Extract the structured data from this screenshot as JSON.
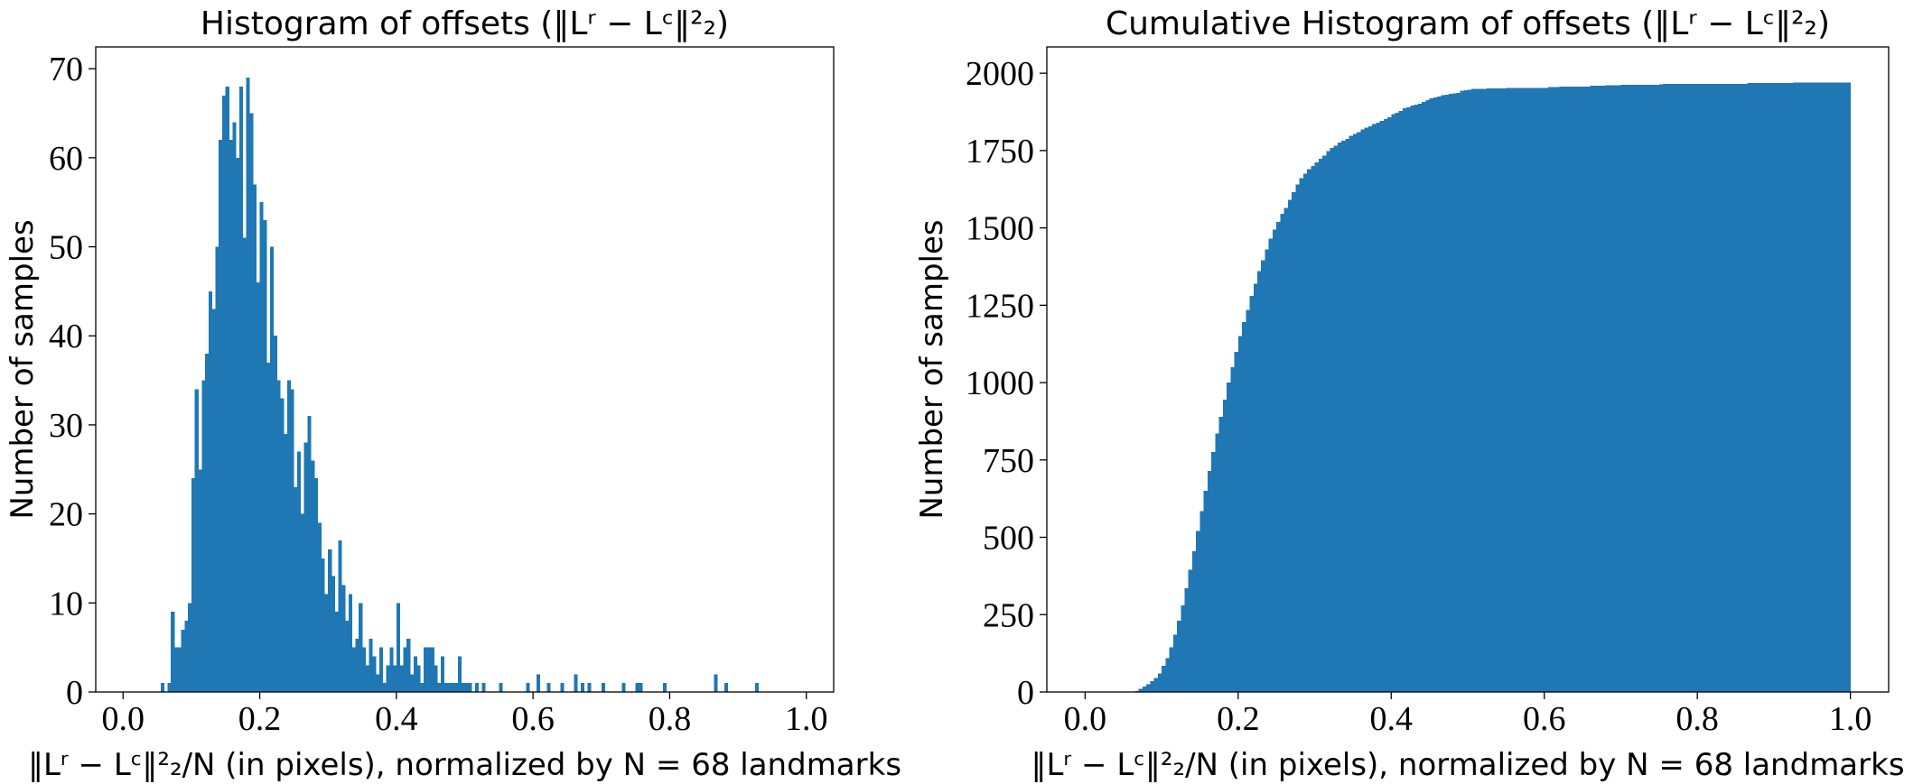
{
  "chart_data": [
    {
      "type": "histogram",
      "title": "Histogram of offsets (‖Lʳ − Lᶜ‖²₂)",
      "x_label": "‖Lʳ − Lᶜ‖²₂/N (in pixels), normalized by N = 68 landmarks",
      "y_label": "Number of samples",
      "color": "#1f77b4",
      "bins": [
        0,
        0.005,
        0.01,
        0.015,
        0.02,
        0.025,
        0.03,
        0.035,
        0.04,
        0.045,
        0.05,
        0.055,
        0.06,
        0.065,
        0.07,
        0.075,
        0.08,
        0.085,
        0.09,
        0.095,
        0.1,
        0.105,
        0.11,
        0.115,
        0.12,
        0.125,
        0.13,
        0.135,
        0.14,
        0.145,
        0.15,
        0.155,
        0.16,
        0.165,
        0.17,
        0.175,
        0.18,
        0.185,
        0.19,
        0.195,
        0.2,
        0.205,
        0.21,
        0.215,
        0.22,
        0.225,
        0.23,
        0.235,
        0.24,
        0.245,
        0.25,
        0.255,
        0.26,
        0.265,
        0.27,
        0.275,
        0.28,
        0.285,
        0.29,
        0.295,
        0.3,
        0.305,
        0.31,
        0.315,
        0.32,
        0.325,
        0.33,
        0.335,
        0.34,
        0.345,
        0.35,
        0.355,
        0.36,
        0.365,
        0.37,
        0.375,
        0.38,
        0.385,
        0.39,
        0.395,
        0.4,
        0.405,
        0.41,
        0.415,
        0.42,
        0.425,
        0.43,
        0.435,
        0.44,
        0.445,
        0.45,
        0.455,
        0.46,
        0.465,
        0.47,
        0.475,
        0.48,
        0.485,
        0.49,
        0.495,
        0.5,
        0.505,
        0.51,
        0.515,
        0.52,
        0.525,
        0.53,
        0.535,
        0.54,
        0.545,
        0.55,
        0.555,
        0.56,
        0.565,
        0.57,
        0.575,
        0.58,
        0.585,
        0.59,
        0.595,
        0.6,
        0.605,
        0.61,
        0.615,
        0.62,
        0.625,
        0.63,
        0.635,
        0.64,
        0.645,
        0.65,
        0.655,
        0.66,
        0.665,
        0.67,
        0.675,
        0.68,
        0.685,
        0.69,
        0.695,
        0.7,
        0.705,
        0.71,
        0.715,
        0.72,
        0.725,
        0.73,
        0.735,
        0.74,
        0.745,
        0.75,
        0.755,
        0.76,
        0.765,
        0.77,
        0.775,
        0.78,
        0.785,
        0.79,
        0.795,
        0.8,
        0.805,
        0.81,
        0.815,
        0.82,
        0.825,
        0.83,
        0.835,
        0.84,
        0.845,
        0.85,
        0.855,
        0.86,
        0.865,
        0.87,
        0.875,
        0.88,
        0.885,
        0.89,
        0.895,
        0.9,
        0.905,
        0.91,
        0.915,
        0.92,
        0.925,
        0.93,
        0.935,
        0.94,
        0.945,
        0.95,
        0.955,
        0.96,
        0.965,
        0.97,
        0.975,
        0.98,
        0.985,
        0.99,
        0.995,
        1
      ],
      "values": [
        0,
        0,
        0,
        0,
        0,
        0,
        0,
        0,
        0,
        0,
        0,
        1,
        0,
        1,
        9,
        5,
        5,
        7,
        8,
        10,
        24,
        34,
        25,
        35,
        38,
        45,
        43,
        50,
        62,
        67,
        68,
        62,
        64,
        60,
        68,
        51,
        69,
        65,
        57,
        46,
        55,
        53,
        37,
        50,
        40,
        35,
        33,
        29,
        35,
        34,
        23,
        27,
        20,
        28,
        31,
        26,
        24,
        19,
        15,
        11,
        16,
        13,
        9,
        17,
        12,
        8,
        11,
        5,
        6,
        10,
        5,
        3,
        6,
        4,
        2,
        5,
        1,
        3,
        5,
        3,
        10,
        3,
        5,
        6,
        2,
        4,
        3,
        1,
        5,
        5,
        5,
        3,
        1,
        4,
        1,
        1,
        1,
        1,
        4,
        1,
        1,
        1,
        0,
        1,
        0,
        1,
        0,
        0,
        0,
        0,
        1,
        0,
        0,
        0,
        0,
        0,
        0,
        0,
        1,
        0,
        0,
        2,
        0,
        0,
        1,
        0,
        0,
        0,
        1,
        0,
        0,
        0,
        2,
        0,
        1,
        0,
        1,
        0,
        0,
        0,
        1,
        0,
        0,
        0,
        0,
        0,
        1,
        0,
        0,
        0,
        1,
        1,
        0,
        0,
        0,
        0,
        0,
        0,
        1,
        0,
        0,
        0,
        0,
        0,
        0,
        0,
        0,
        0,
        0,
        0,
        0,
        0,
        0,
        2,
        0,
        0,
        1,
        0,
        0,
        0,
        0,
        0,
        0,
        0,
        0,
        1,
        0,
        0,
        0,
        0,
        0,
        0,
        0,
        0,
        0,
        0,
        0,
        0,
        0,
        0
      ],
      "xlim": [
        -0.04,
        1.04
      ],
      "ylim": [
        0,
        72.45
      ],
      "xticks": [
        {
          "value": 0,
          "label": "0.0"
        },
        0.2,
        0.4,
        0.6,
        0.8,
        {
          "value": 1,
          "label": "1.0"
        }
      ],
      "yticks": [
        0,
        10,
        20,
        30,
        40,
        50,
        60,
        70
      ]
    },
    {
      "type": "histogram",
      "title": "Cumulative Histogram of offsets (‖Lʳ − Lᶜ‖²₂)",
      "x_label": "‖Lʳ − Lᶜ‖²₂/N (in pixels), normalized by N = 68 landmarks",
      "y_label": "Number of samples",
      "color": "#1f77b4",
      "bins": [
        0,
        0.005,
        0.01,
        0.015,
        0.02,
        0.025,
        0.03,
        0.035,
        0.04,
        0.045,
        0.05,
        0.055,
        0.06,
        0.065,
        0.07,
        0.075,
        0.08,
        0.085,
        0.09,
        0.095,
        0.1,
        0.105,
        0.11,
        0.115,
        0.12,
        0.125,
        0.13,
        0.135,
        0.14,
        0.145,
        0.15,
        0.155,
        0.16,
        0.165,
        0.17,
        0.175,
        0.18,
        0.185,
        0.19,
        0.195,
        0.2,
        0.205,
        0.21,
        0.215,
        0.22,
        0.225,
        0.23,
        0.235,
        0.24,
        0.245,
        0.25,
        0.255,
        0.26,
        0.265,
        0.27,
        0.275,
        0.28,
        0.285,
        0.29,
        0.295,
        0.3,
        0.305,
        0.31,
        0.315,
        0.32,
        0.325,
        0.33,
        0.335,
        0.34,
        0.345,
        0.35,
        0.355,
        0.36,
        0.365,
        0.37,
        0.375,
        0.38,
        0.385,
        0.39,
        0.395,
        0.4,
        0.405,
        0.41,
        0.415,
        0.42,
        0.425,
        0.43,
        0.435,
        0.44,
        0.445,
        0.45,
        0.455,
        0.46,
        0.465,
        0.47,
        0.475,
        0.48,
        0.485,
        0.49,
        0.495,
        0.5,
        0.505,
        0.51,
        0.515,
        0.52,
        0.525,
        0.53,
        0.535,
        0.54,
        0.545,
        0.55,
        0.555,
        0.56,
        0.565,
        0.57,
        0.575,
        0.58,
        0.585,
        0.59,
        0.595,
        0.6,
        0.605,
        0.61,
        0.615,
        0.62,
        0.625,
        0.63,
        0.635,
        0.64,
        0.645,
        0.65,
        0.655,
        0.66,
        0.665,
        0.67,
        0.675,
        0.68,
        0.685,
        0.69,
        0.695,
        0.7,
        0.705,
        0.71,
        0.715,
        0.72,
        0.725,
        0.73,
        0.735,
        0.74,
        0.745,
        0.75,
        0.755,
        0.76,
        0.765,
        0.77,
        0.775,
        0.78,
        0.785,
        0.79,
        0.795,
        0.8,
        0.805,
        0.81,
        0.815,
        0.82,
        0.825,
        0.83,
        0.835,
        0.84,
        0.845,
        0.85,
        0.855,
        0.86,
        0.865,
        0.87,
        0.875,
        0.88,
        0.885,
        0.89,
        0.895,
        0.9,
        0.905,
        0.91,
        0.915,
        0.92,
        0.925,
        0.93,
        0.935,
        0.94,
        0.945,
        0.95,
        0.955,
        0.96,
        0.965,
        0.97,
        0.975,
        0.98,
        0.985,
        0.99,
        0.995,
        1
      ],
      "values": [
        0,
        0,
        0,
        0,
        0,
        0,
        0,
        0,
        0,
        0,
        0,
        1,
        1,
        3,
        10,
        18,
        25,
        35,
        45,
        60,
        85,
        110,
        145,
        185,
        230,
        280,
        335,
        395,
        455,
        520,
        585,
        650,
        715,
        775,
        835,
        890,
        945,
        1000,
        1050,
        1100,
        1150,
        1195,
        1235,
        1280,
        1320,
        1360,
        1395,
        1430,
        1465,
        1495,
        1520,
        1545,
        1565,
        1590,
        1615,
        1640,
        1660,
        1675,
        1690,
        1700,
        1712,
        1724,
        1734,
        1748,
        1758,
        1766,
        1776,
        1782,
        1788,
        1798,
        1804,
        1810,
        1818,
        1824,
        1828,
        1836,
        1840,
        1846,
        1852,
        1858,
        1868,
        1872,
        1878,
        1886,
        1889,
        1895,
        1899,
        1901,
        1907,
        1913,
        1919,
        1922,
        1924,
        1929,
        1931,
        1933,
        1935,
        1937,
        1943,
        1945,
        1947,
        1949,
        1949,
        1950,
        1950,
        1951,
        1951,
        1951,
        1951,
        1951,
        1952,
        1952,
        1952,
        1952,
        1952,
        1952,
        1952,
        1952,
        1953,
        1953,
        1953,
        1955,
        1955,
        1955,
        1956,
        1956,
        1956,
        1956,
        1957,
        1957,
        1957,
        1957,
        1959,
        1959,
        1960,
        1960,
        1961,
        1961,
        1961,
        1961,
        1962,
        1962,
        1962,
        1962,
        1962,
        1962,
        1963,
        1963,
        1963,
        1963,
        1964,
        1965,
        1965,
        1965,
        1965,
        1965,
        1965,
        1965,
        1966,
        1966,
        1966,
        1966,
        1966,
        1966,
        1966,
        1966,
        1966,
        1966,
        1966,
        1966,
        1966,
        1966,
        1966,
        1968,
        1968,
        1968,
        1969,
        1969,
        1969,
        1969,
        1969,
        1969,
        1969,
        1969,
        1969,
        1970,
        1970,
        1970,
        1970,
        1970,
        1970,
        1970,
        1970,
        1970,
        1970,
        1970,
        1970,
        1970,
        1970,
        1970
      ],
      "xlim": [
        -0.05,
        1.05
      ],
      "ylim": [
        0,
        2085
      ],
      "xticks": [
        {
          "value": 0,
          "label": "0.0"
        },
        0.2,
        0.4,
        0.6,
        0.8,
        {
          "value": 1,
          "label": "1.0"
        }
      ],
      "yticks": [
        0,
        250,
        500,
        750,
        1000,
        1250,
        1500,
        1750,
        2000
      ]
    }
  ]
}
